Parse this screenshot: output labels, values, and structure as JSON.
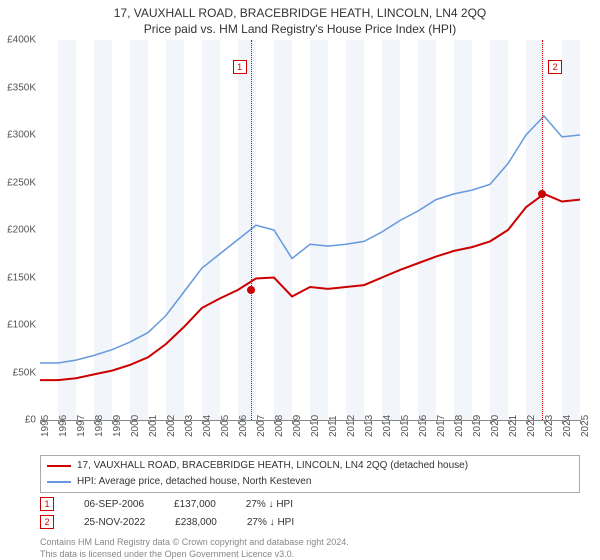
{
  "title": "17, VAUXHALL ROAD, BRACEBRIDGE HEATH, LINCOLN, LN4 2QQ",
  "subtitle": "Price paid vs. HM Land Registry's House Price Index (HPI)",
  "chart": {
    "type": "line",
    "ylim": [
      0,
      400000
    ],
    "ytick_step": 50000,
    "ytick_labels": [
      "£0",
      "£50K",
      "£100K",
      "£150K",
      "£200K",
      "£250K",
      "£300K",
      "£350K",
      "£400K"
    ],
    "xyears": [
      1995,
      1996,
      1997,
      1998,
      1999,
      2000,
      2001,
      2002,
      2003,
      2004,
      2005,
      2006,
      2007,
      2008,
      2009,
      2010,
      2011,
      2012,
      2013,
      2014,
      2015,
      2016,
      2017,
      2018,
      2019,
      2020,
      2021,
      2022,
      2023,
      2024,
      2025
    ],
    "background_color": "#ffffff",
    "band_color": "#f2f5fa",
    "grid_color": "#e0e0e0",
    "title_fontsize": 12,
    "label_fontsize": 10,
    "series": [
      {
        "name": "property",
        "color": "#cc0000",
        "width": 2,
        "label": "17, VAUXHALL ROAD, BRACEBRIDGE HEATH, LINCOLN, LN4 2QQ (detached house)",
        "values": [
          42000,
          42000,
          44000,
          48000,
          52000,
          58000,
          66000,
          80000,
          98000,
          118000,
          128000,
          137000,
          149000,
          150000,
          130000,
          140000,
          138000,
          140000,
          142000,
          150000,
          158000,
          165000,
          172000,
          178000,
          182000,
          188000,
          200000,
          224000,
          238000,
          230000,
          232000
        ]
      },
      {
        "name": "hpi",
        "color": "#6699dd",
        "width": 1.5,
        "label": "HPI: Average price, detached house, North Kesteven",
        "values": [
          60000,
          60000,
          63000,
          68000,
          74000,
          82000,
          92000,
          110000,
          135000,
          160000,
          175000,
          190000,
          205000,
          200000,
          170000,
          185000,
          183000,
          185000,
          188000,
          198000,
          210000,
          220000,
          232000,
          238000,
          242000,
          248000,
          270000,
          300000,
          320000,
          298000,
          300000
        ]
      }
    ],
    "events": [
      {
        "n": 1,
        "year": 2006.7,
        "date": "06-SEP-2006",
        "price": "£137,000",
        "delta": "27% ↓ HPI",
        "color": "#cc0000",
        "dot_y": 137000
      },
      {
        "n": 2,
        "year": 2022.9,
        "date": "25-NOV-2022",
        "price": "£238,000",
        "delta": "27% ↓ HPI",
        "color": "#cc0000",
        "dot_y": 238000
      }
    ]
  },
  "footer_line1": "Contains HM Land Registry data © Crown copyright and database right 2024.",
  "footer_line2": "This data is licensed under the Open Government Licence v3.0."
}
